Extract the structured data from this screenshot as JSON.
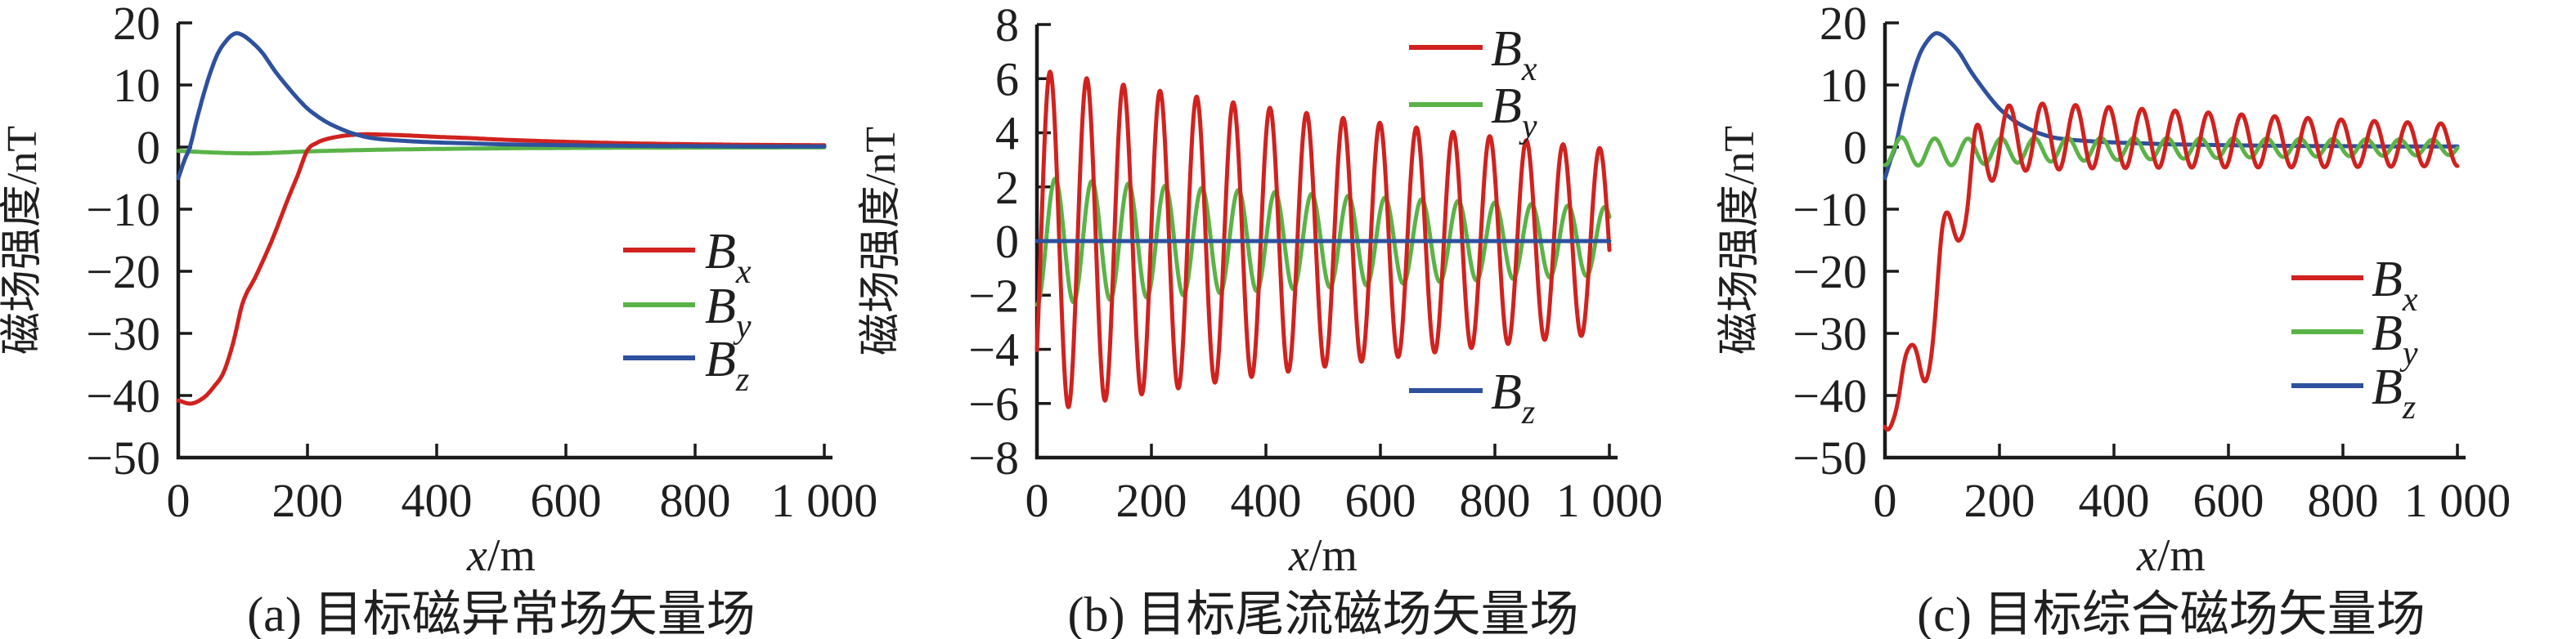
{
  "figure": {
    "background": "#ffffff",
    "axis_color": "#1a1a1a",
    "y_axis_label": "磁场强度/nT",
    "x_axis_label": {
      "variable": "x",
      "unit": "/m"
    },
    "series_colors": {
      "Bx": "#d0221f",
      "By": "#5ab347",
      "Bz": "#2e519e"
    }
  },
  "chart_data": [
    {
      "id": "a",
      "type": "line",
      "caption": "(a) 目标磁异常场矢量场",
      "xlabel": "x/m",
      "ylabel": "磁场强度/nT",
      "xlim": [
        0,
        1000
      ],
      "ylim": [
        -50,
        20
      ],
      "grid": false,
      "xticks": [
        0,
        200,
        400,
        600,
        800,
        1000
      ],
      "xtick_labels": [
        "0",
        "200",
        "400",
        "600",
        "800",
        "1 000"
      ],
      "yticks": [
        20,
        10,
        0,
        -10,
        -20,
        -30,
        -40,
        -50
      ],
      "ytick_labels": [
        "20",
        "10",
        "0",
        "−10",
        "−20",
        "−30",
        "−40",
        "−50"
      ],
      "legend_position": "middle-right-inside",
      "legend": [
        {
          "main": "B",
          "sub": "x",
          "series": "Bx"
        },
        {
          "main": "B",
          "sub": "y",
          "series": "By"
        },
        {
          "main": "B",
          "sub": "z",
          "series": "Bz"
        }
      ],
      "series": [
        {
          "name": "Bx",
          "color_key": "Bx",
          "kind": "points",
          "points": [
            [
              0,
              -40.8
            ],
            [
              20,
              -41.3
            ],
            [
              40,
              -40.3
            ],
            [
              55,
              -38.6
            ],
            [
              70,
              -36.3
            ],
            [
              85,
              -31.5
            ],
            [
              100,
              -25.0
            ],
            [
              120,
              -20.8
            ],
            [
              145,
              -15.0
            ],
            [
              170,
              -8.3
            ],
            [
              185,
              -4.5
            ],
            [
              200,
              -0.5
            ],
            [
              215,
              0.7
            ],
            [
              230,
              1.3
            ],
            [
              255,
              1.8
            ],
            [
              285,
              2.05
            ],
            [
              320,
              2.0
            ],
            [
              360,
              1.85
            ],
            [
              400,
              1.65
            ],
            [
              450,
              1.45
            ],
            [
              500,
              1.2
            ],
            [
              600,
              0.85
            ],
            [
              700,
              0.6
            ],
            [
              800,
              0.45
            ],
            [
              900,
              0.35
            ],
            [
              1000,
              0.3
            ]
          ]
        },
        {
          "name": "By",
          "color_key": "By",
          "kind": "points",
          "points": [
            [
              0,
              -0.6
            ],
            [
              60,
              -0.9
            ],
            [
              120,
              -1.0
            ],
            [
              200,
              -0.7
            ],
            [
              300,
              -0.45
            ],
            [
              400,
              -0.3
            ],
            [
              500,
              -0.2
            ],
            [
              650,
              -0.12
            ],
            [
              800,
              -0.08
            ],
            [
              1000,
              -0.05
            ]
          ]
        },
        {
          "name": "Bz",
          "color_key": "Bz",
          "kind": "points",
          "points": [
            [
              0,
              -5.0
            ],
            [
              10,
              -2.0
            ],
            [
              18,
              0.0
            ],
            [
              30,
              5.0
            ],
            [
              45,
              10.5
            ],
            [
              60,
              14.8
            ],
            [
              75,
              17.2
            ],
            [
              88,
              18.3
            ],
            [
              100,
              18.0
            ],
            [
              115,
              16.8
            ],
            [
              130,
              15.2
            ],
            [
              150,
              12.2
            ],
            [
              170,
              9.6
            ],
            [
              185,
              7.8
            ],
            [
              200,
              6.2
            ],
            [
              215,
              5.0
            ],
            [
              230,
              4.0
            ],
            [
              250,
              3.0
            ],
            [
              270,
              2.2
            ],
            [
              300,
              1.45
            ],
            [
              350,
              1.0
            ],
            [
              400,
              0.75
            ],
            [
              450,
              0.6
            ],
            [
              500,
              0.45
            ],
            [
              600,
              0.3
            ],
            [
              700,
              0.2
            ],
            [
              800,
              0.15
            ],
            [
              900,
              0.1
            ],
            [
              1000,
              0.1
            ]
          ]
        }
      ]
    },
    {
      "id": "b",
      "type": "line",
      "caption": "(b) 目标尾流磁场矢量场",
      "xlabel": "x/m",
      "ylabel": "磁场强度/nT",
      "xlim": [
        0,
        1000
      ],
      "ylim": [
        -8,
        8
      ],
      "grid": false,
      "xticks": [
        0,
        200,
        400,
        600,
        800,
        1000
      ],
      "xtick_labels": [
        "0",
        "200",
        "400",
        "600",
        "800",
        "1 000"
      ],
      "yticks": [
        8,
        6,
        4,
        2,
        0,
        -2,
        -4,
        -6,
        -8
      ],
      "ytick_labels": [
        "8",
        "6",
        "4",
        "2",
        "0",
        "−2",
        "−4",
        "−6",
        "−8"
      ],
      "legend_position": "split: Bx,By top-right; Bz lower-right",
      "legend": [
        {
          "main": "B",
          "sub": "x",
          "series": "Bx"
        },
        {
          "main": "B",
          "sub": "y",
          "series": "By"
        },
        {
          "main": "B",
          "sub": "z",
          "series": "Bz"
        }
      ],
      "series": [
        {
          "name": "Bx",
          "color_key": "Bx",
          "kind": "damped_sine",
          "baseline": 0,
          "amplitude_nT": 6.35,
          "decay_length_m": 1600,
          "wavelength_m": 64,
          "rising_zero_m": 7,
          "envelope_note": "peaks ≈6.3 nT near x=25 m decaying to ≈3.6 nT at x=950 m"
        },
        {
          "name": "By",
          "color_key": "By",
          "kind": "damped_sine",
          "baseline": 0,
          "amplitude_nT": 2.35,
          "decay_length_m": 1600,
          "wavelength_m": 64,
          "rising_zero_m": 16,
          "envelope_note": "peaks ≈2.3 nT decaying to ≈1.3 nT"
        },
        {
          "name": "Bz",
          "color_key": "Bz",
          "kind": "points",
          "points": [
            [
              0,
              0
            ],
            [
              1000,
              0
            ]
          ]
        }
      ]
    },
    {
      "id": "c",
      "type": "line",
      "caption": "(c) 目标综合磁场矢量场",
      "xlabel": "x/m",
      "ylabel": "磁场强度/nT",
      "xlim": [
        0,
        1000
      ],
      "ylim": [
        -50,
        20
      ],
      "grid": false,
      "xticks": [
        0,
        200,
        400,
        600,
        800,
        1000
      ],
      "xtick_labels": [
        "0",
        "200",
        "400",
        "600",
        "800",
        "1 000"
      ],
      "yticks": [
        20,
        10,
        0,
        -10,
        -20,
        -30,
        -40,
        -50
      ],
      "ytick_labels": [
        "20",
        "10",
        "0",
        "−10",
        "−20",
        "−30",
        "−40",
        "−50"
      ],
      "legend_position": "lower-right-inside",
      "legend": [
        {
          "main": "B",
          "sub": "x",
          "series": "Bx"
        },
        {
          "main": "B",
          "sub": "y",
          "series": "By"
        },
        {
          "main": "B",
          "sub": "z",
          "series": "Bz"
        }
      ],
      "series": [
        {
          "name": "Bx",
          "color_key": "Bx",
          "kind": "points_plus_damped_sine",
          "points": [
            [
              0,
              -44.7
            ],
            [
              14,
              -37.8
            ],
            [
              29,
              -37.5
            ],
            [
              43,
              -38.3
            ],
            [
              58,
              -33.7
            ],
            [
              72,
              -31.5
            ],
            [
              87,
              -28.3
            ],
            [
              101,
              -18.4
            ],
            [
              116,
              -11.7
            ],
            [
              130,
              -9.2
            ],
            [
              145,
              -9.3
            ],
            [
              159,
              -2.5
            ],
            [
              174,
              -0.7
            ],
            [
              188,
              0.2
            ],
            [
              203,
              1.2
            ],
            [
              217,
              1.2
            ],
            [
              246,
              1.6
            ],
            [
              275,
              1.7
            ],
            [
              304,
              1.6
            ],
            [
              333,
              1.65
            ],
            [
              400,
              1.5
            ],
            [
              500,
              1.3
            ],
            [
              600,
              1.05
            ],
            [
              700,
              0.8
            ],
            [
              800,
              0.6
            ],
            [
              900,
              0.45
            ],
            [
              1000,
              0.35
            ]
          ],
          "amplitude_nT": 6.3,
          "decay_length_m": 1600,
          "wavelength_m": 58,
          "rising_zero_m": 28.5,
          "shape_note": "starts ≈−45 nT, wiggly rise (local max ≈−32 at 48 m, dip ≈−37.5 at 72 m), oscillates to peaks ≈+7 decaying to ≈+4, minima ≈−3"
        },
        {
          "name": "By",
          "color_key": "By",
          "kind": "points_plus_damped_sine",
          "points": [
            [
              0,
              -0.6
            ],
            [
              100,
              -0.8
            ],
            [
              200,
              -0.6
            ],
            [
              300,
              -0.4
            ],
            [
              400,
              -0.3
            ],
            [
              600,
              -0.15
            ],
            [
              800,
              -0.08
            ],
            [
              1000,
              -0.05
            ]
          ],
          "amplitude_nT": 2.3,
          "decay_length_m": 1600,
          "wavelength_m": 58,
          "rising_zero_m": 14.5,
          "shape_note": "small oscillation ±2.3 nT decaying to ±1.3 nT about ≈0"
        },
        {
          "name": "Bz",
          "color_key": "Bz",
          "kind": "points",
          "points": [
            [
              0,
              -5.0
            ],
            [
              10,
              -2.0
            ],
            [
              18,
              0.0
            ],
            [
              30,
              5.0
            ],
            [
              45,
              10.5
            ],
            [
              60,
              14.8
            ],
            [
              75,
              17.2
            ],
            [
              88,
              18.3
            ],
            [
              100,
              18.0
            ],
            [
              115,
              16.8
            ],
            [
              130,
              15.2
            ],
            [
              150,
              12.2
            ],
            [
              170,
              9.6
            ],
            [
              185,
              7.8
            ],
            [
              200,
              6.2
            ],
            [
              215,
              5.0
            ],
            [
              230,
              4.0
            ],
            [
              250,
              3.0
            ],
            [
              270,
              2.2
            ],
            [
              300,
              1.45
            ],
            [
              350,
              1.0
            ],
            [
              400,
              0.75
            ],
            [
              450,
              0.6
            ],
            [
              500,
              0.45
            ],
            [
              600,
              0.3
            ],
            [
              700,
              0.2
            ],
            [
              800,
              0.15
            ],
            [
              900,
              0.1
            ],
            [
              1000,
              0.1
            ]
          ]
        }
      ]
    }
  ]
}
